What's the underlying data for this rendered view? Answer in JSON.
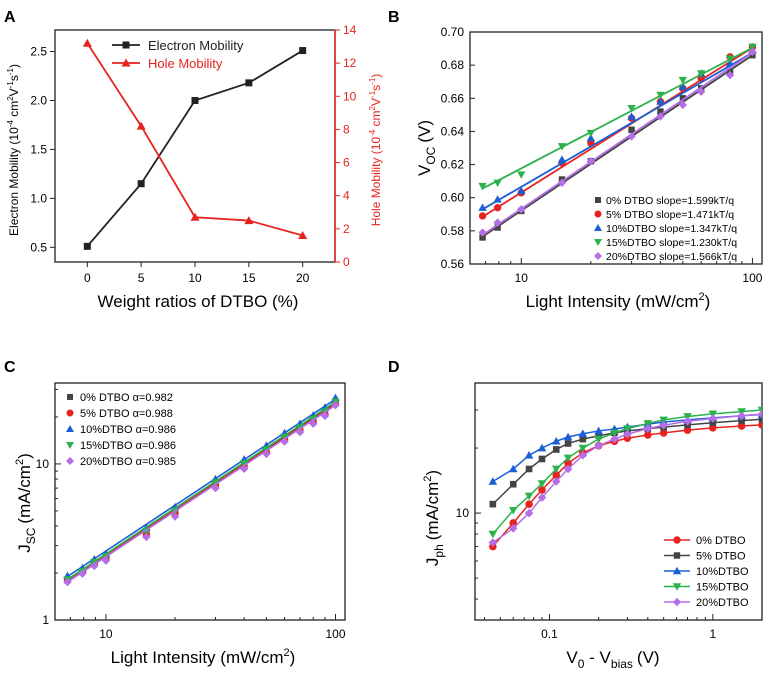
{
  "colors": {
    "black": "#222222",
    "red": "#e8231f",
    "blue": "#1a5fd6",
    "green": "#2bb24c",
    "purple": "#b66ee8",
    "darkgray": "#444444"
  },
  "chart_data": [
    {
      "panel": "A",
      "type": "line",
      "title": "",
      "xlabel": "Weight ratios of DTBO (%)",
      "ylabel": "Electron Mobility (10⁻⁴ cm²V⁻¹s⁻¹)",
      "y2label": "Hole Mobility (10⁻⁴ cm²V⁻¹s⁻¹)",
      "x": [
        0,
        5,
        10,
        15,
        20
      ],
      "xlim": [
        -3,
        23
      ],
      "ylim": [
        0.35,
        2.72
      ],
      "y2lim": [
        0,
        14
      ],
      "xticks": [
        "0",
        "5",
        "10",
        "15",
        "20"
      ],
      "yticks": [
        "0.5",
        "1.0",
        "1.5",
        "2.0",
        "2.5"
      ],
      "y2ticks": [
        "0",
        "2",
        "4",
        "6",
        "8",
        "10",
        "12",
        "14"
      ],
      "series": [
        {
          "name": "Electron Mobility",
          "axis": "left",
          "marker": "square",
          "color": "black",
          "values": [
            0.51,
            1.15,
            2.0,
            2.18,
            2.51
          ]
        },
        {
          "name": "Hole Mobility",
          "axis": "right",
          "marker": "triangle-up",
          "color": "red",
          "values": [
            13.2,
            8.2,
            2.7,
            2.5,
            1.6
          ]
        }
      ],
      "legend": "top-center"
    },
    {
      "panel": "B",
      "type": "scatter",
      "xscale": "log",
      "xlabel": "Light Intensity (mW/cm²)",
      "ylabel": "V_OC (V)",
      "xlim": [
        6,
        110
      ],
      "ylim": [
        0.56,
        0.7
      ],
      "xticks": [
        "10",
        "100"
      ],
      "yticks": [
        "0.56",
        "0.58",
        "0.60",
        "0.62",
        "0.64",
        "0.66",
        "0.68",
        "0.70"
      ],
      "x": [
        6.8,
        7.9,
        10,
        15,
        20,
        30,
        40,
        50,
        60,
        80,
        100
      ],
      "series": [
        {
          "name": "0%  DTBO slope=1.599kT/q",
          "marker": "square",
          "color": "darkgray",
          "values": [
            0.576,
            0.582,
            0.592,
            0.611,
            0.622,
            0.641,
            0.652,
            0.66,
            0.666,
            0.676,
            0.686
          ],
          "fit": [
            0.5765,
            0.686
          ]
        },
        {
          "name": "5%  DTBO slope=1.471kT/q",
          "marker": "circle",
          "color": "red",
          "values": [
            0.589,
            0.594,
            0.603,
            0.621,
            0.633,
            0.648,
            0.658,
            0.666,
            0.672,
            0.685,
            0.691
          ],
          "fit": [
            0.5885,
            0.6905
          ]
        },
        {
          "name": "10%DTBO slope=1.347kT/q",
          "marker": "triangle-up",
          "color": "blue",
          "values": [
            0.594,
            0.599,
            0.604,
            0.623,
            0.636,
            0.649,
            0.658,
            0.667,
            0.675,
            0.681,
            0.689
          ],
          "fit": [
            0.593,
            0.6875
          ]
        },
        {
          "name": "15%DTBO slope=1.230kT/q",
          "marker": "triangle-down",
          "color": "green",
          "values": [
            0.607,
            0.609,
            0.614,
            0.631,
            0.639,
            0.654,
            0.662,
            0.671,
            0.675,
            0.684,
            0.691
          ],
          "fit": [
            0.6055,
            0.6905
          ]
        },
        {
          "name": "20%DTBO slope=1.566kT/q",
          "marker": "diamond",
          "color": "purple",
          "values": [
            0.579,
            0.585,
            0.593,
            0.609,
            0.622,
            0.637,
            0.649,
            0.656,
            0.664,
            0.674,
            0.688
          ],
          "fit": [
            0.5775,
            0.6875
          ]
        }
      ],
      "legend": "bottom-right"
    },
    {
      "panel": "C",
      "type": "scatter",
      "xscale": "log",
      "yscale": "log",
      "xlabel": "Light Intensity (mW/cm²)",
      "ylabel": "J_SC (mA/cm²)",
      "xlim": [
        6,
        110
      ],
      "ylim": [
        1,
        33
      ],
      "xticks": [
        "10",
        "100"
      ],
      "yticks": [
        "1",
        "10"
      ],
      "x": [
        6.8,
        7.9,
        8.9,
        10,
        15,
        20,
        30,
        40,
        50,
        60,
        70,
        80,
        90,
        100
      ],
      "series": [
        {
          "name": "0%  DTBO α=0.982",
          "marker": "square",
          "color": "darkgray",
          "values": [
            1.8,
            2.05,
            2.3,
            2.5,
            3.6,
            4.9,
            7.4,
            9.8,
            12.0,
            14.5,
            16.6,
            18.8,
            21.0,
            24.5
          ],
          "fit": [
            1.8,
            24.5
          ]
        },
        {
          "name": "5%  DTBO α=0.988",
          "marker": "circle",
          "color": "red",
          "values": [
            1.78,
            2.02,
            2.28,
            2.48,
            3.55,
            4.85,
            7.3,
            9.7,
            11.9,
            14.3,
            16.4,
            18.6,
            20.8,
            24.2
          ],
          "fit": [
            1.78,
            24.2
          ]
        },
        {
          "name": "10%DTBO α=0.986",
          "marker": "triangle-up",
          "color": "blue",
          "values": [
            1.92,
            2.15,
            2.45,
            2.65,
            3.9,
            5.3,
            8.0,
            10.7,
            13.1,
            15.8,
            18.1,
            20.5,
            23.0,
            26.5
          ],
          "fit": [
            1.9,
            26.0
          ]
        },
        {
          "name": "15%DTBO α=0.986",
          "marker": "triangle-down",
          "color": "green",
          "values": [
            1.82,
            2.05,
            2.35,
            2.55,
            3.7,
            5.0,
            7.6,
            10.1,
            12.4,
            14.9,
            17.1,
            19.4,
            21.6,
            25.0
          ],
          "fit": [
            1.82,
            25.0
          ]
        },
        {
          "name": "20%DTBO α=0.985",
          "marker": "diamond",
          "color": "purple",
          "values": [
            1.75,
            1.98,
            2.22,
            2.4,
            3.4,
            4.6,
            7.0,
            9.3,
            11.6,
            13.9,
            16.0,
            18.1,
            20.3,
            23.8
          ],
          "fit": [
            1.75,
            23.8
          ]
        }
      ],
      "legend": "top-left"
    },
    {
      "panel": "D",
      "type": "line",
      "xscale": "log",
      "yscale": "log",
      "xlabel": "V₀ - V_bias (V)",
      "ylabel": "J_ph (mA/cm²)",
      "xlim": [
        0.035,
        2
      ],
      "ylim": [
        3.2,
        40
      ],
      "xticks": [
        "0.1",
        "1"
      ],
      "yticks": [
        "10"
      ],
      "x": [
        0.045,
        0.06,
        0.075,
        0.09,
        0.11,
        0.13,
        0.16,
        0.2,
        0.25,
        0.3,
        0.4,
        0.5,
        0.7,
        1.0,
        1.5,
        2.0
      ],
      "series": [
        {
          "name": "0% DTBO",
          "marker": "circle",
          "color": "red",
          "values": [
            7.0,
            9.0,
            11.0,
            12.8,
            15.0,
            17.0,
            19.0,
            20.5,
            21.5,
            22.2,
            23.0,
            23.5,
            24.2,
            24.8,
            25.3,
            25.6
          ]
        },
        {
          "name": "5% DTBO",
          "marker": "square",
          "color": "darkgray",
          "values": [
            11.0,
            13.6,
            16.0,
            17.8,
            19.7,
            21.0,
            22.0,
            22.8,
            23.5,
            24.0,
            24.6,
            25.0,
            25.6,
            26.2,
            26.8,
            27.2
          ]
        },
        {
          "name": "10%DTBO",
          "marker": "triangle-up",
          "color": "blue",
          "values": [
            14.0,
            16.0,
            18.5,
            20.0,
            21.5,
            22.5,
            23.3,
            24.0,
            24.5,
            25.0,
            25.8,
            26.4,
            27.0,
            27.6,
            28.2,
            28.6
          ]
        },
        {
          "name": "15%DTBO",
          "marker": "triangle-down",
          "color": "green",
          "values": [
            8.0,
            10.3,
            12.0,
            13.7,
            16.0,
            18.0,
            20.0,
            22.0,
            23.5,
            24.6,
            26.0,
            27.0,
            28.0,
            28.8,
            29.5,
            30.0
          ]
        },
        {
          "name": "20%DTBO",
          "marker": "diamond",
          "color": "purple",
          "values": [
            7.3,
            8.5,
            10.0,
            11.8,
            14.0,
            16.0,
            18.5,
            20.5,
            22.0,
            23.2,
            24.6,
            25.5,
            26.6,
            27.4,
            28.2,
            28.7
          ]
        }
      ],
      "legend": "bottom-right"
    }
  ],
  "labels": {
    "panelA": "A",
    "panelB": "B",
    "panelC": "C",
    "panelD": "D",
    "exponent_m4": "-4",
    "sq_2": "2",
    "exponent_m1": "-1",
    "sub_oc": "OC",
    "sub_sc": "SC",
    "sub_ph": "ph",
    "sub_0": "0",
    "sub_bias": "bias",
    "unit_mw": "(mW/cm",
    "unit_v": "(V)",
    "unit_ma": "(mA/cm",
    "ylab_A_left_prefix": "Electron Mobility (10",
    "ylab_A_right_prefix": "Hole Mobility (10",
    "ylab_cm": " cm",
    "ylab_v": "V",
    "ylab_s": "s",
    "close_paren": ")",
    "V": "V",
    "J": "J",
    "minus": " - "
  }
}
